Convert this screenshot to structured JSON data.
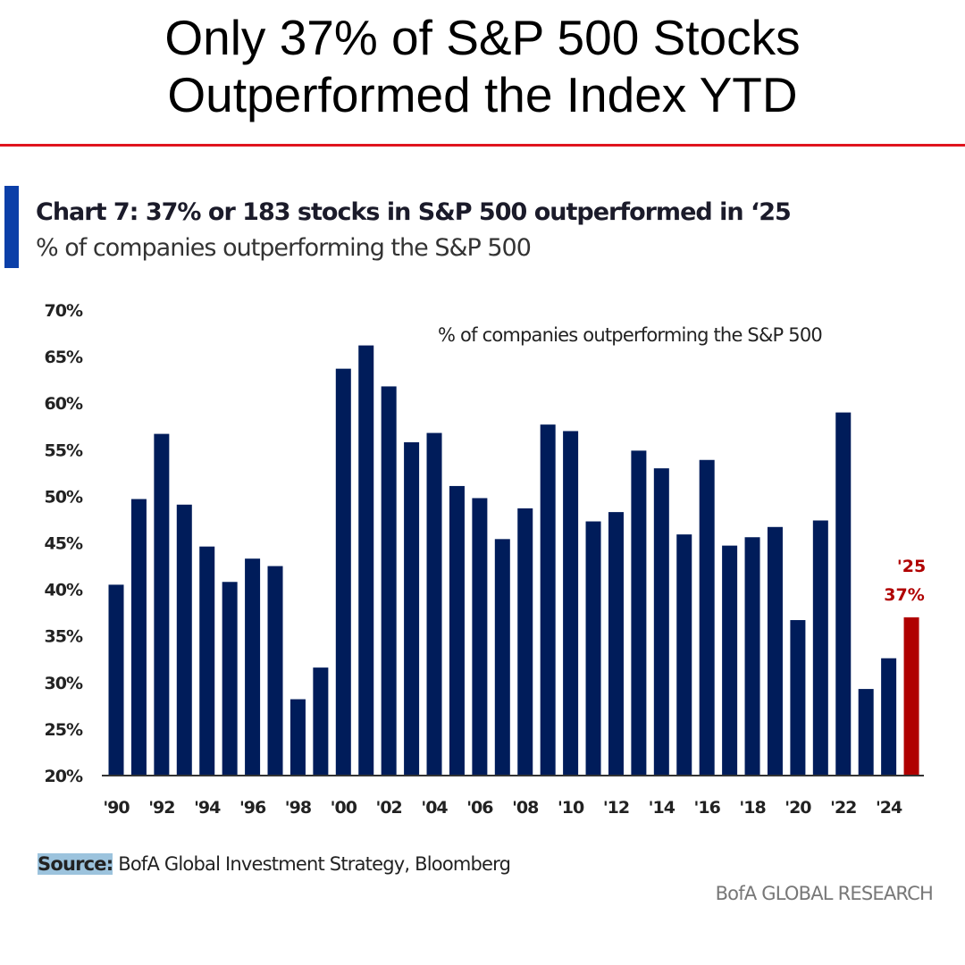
{
  "headline": {
    "line1": "Only 37% of S&P 500 Stocks",
    "line2": "Outperformed the Index YTD"
  },
  "colors": {
    "bar": "#001c5a",
    "highlight": "#b00000",
    "accent_red": "#e0141e",
    "accent_blue": "#0b3fa8"
  },
  "chart_data": {
    "type": "bar",
    "title": "Chart 7: 37% or 183 stocks in S&P 500 outperformed in ‘25",
    "subtitle": "% of companies outperforming the S&P 500",
    "legend": "% of companies outperforming the S&P 500",
    "categories": [
      "1990",
      "1991",
      "1992",
      "1993",
      "1994",
      "1995",
      "1996",
      "1997",
      "1998",
      "1999",
      "2000",
      "2001",
      "2002",
      "2003",
      "2004",
      "2005",
      "2006",
      "2007",
      "2008",
      "2009",
      "2010",
      "2011",
      "2012",
      "2013",
      "2014",
      "2015",
      "2016",
      "2017",
      "2018",
      "2019",
      "2020",
      "2021",
      "2022",
      "2023",
      "2024",
      "2025"
    ],
    "values": [
      40.5,
      49.7,
      56.7,
      49.1,
      44.6,
      40.8,
      43.3,
      42.5,
      28.2,
      31.6,
      63.7,
      66.2,
      61.8,
      55.8,
      56.8,
      51.1,
      49.8,
      45.4,
      48.7,
      57.7,
      57.0,
      47.3,
      48.3,
      54.9,
      53.0,
      45.9,
      53.9,
      44.7,
      45.6,
      46.7,
      36.7,
      47.4,
      59.0,
      29.3,
      32.6,
      37.0
    ],
    "highlight_index": 35,
    "annotation": {
      "line1": "'25",
      "line2": "37%"
    },
    "xticks": [
      "'90",
      "'92",
      "'94",
      "'96",
      "'98",
      "'00",
      "'02",
      "'04",
      "'06",
      "'08",
      "'10",
      "'12",
      "'14",
      "'16",
      "'18",
      "'20",
      "'22",
      "'24"
    ],
    "yticks": [
      "20%",
      "25%",
      "30%",
      "35%",
      "40%",
      "45%",
      "50%",
      "55%",
      "60%",
      "65%",
      "70%"
    ],
    "ylim": [
      20,
      70
    ],
    "grid": false,
    "legend_placement": "top-center"
  },
  "footer": {
    "source_label": "Source:",
    "source_text": " BofA Global Investment Strategy, Bloomberg",
    "brand": "BofA GLOBAL RESEARCH"
  }
}
